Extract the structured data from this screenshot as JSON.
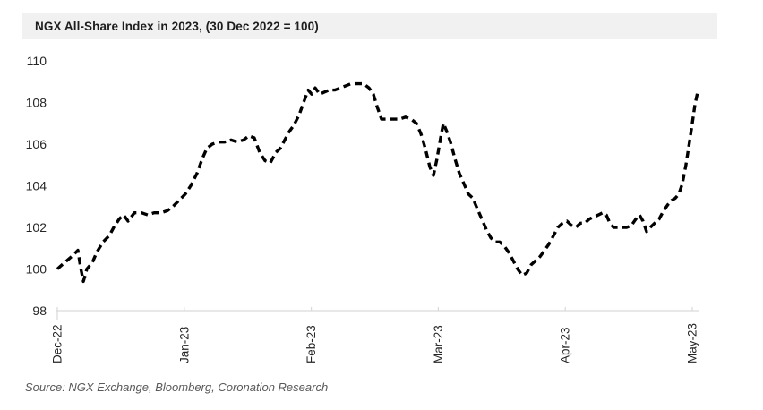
{
  "header": {
    "title": "NGX All-Share Index in 2023, (30 Dec 2022 = 100)"
  },
  "footer": {
    "source": "Source: NGX Exchange, Bloomberg, Coronation Research"
  },
  "colors": {
    "background": "#ffffff",
    "title_bar_bg": "#f1f1f1",
    "title_text": "#1d1d1f",
    "line": "#000000",
    "axis_line": "#d9d9d9",
    "axis_text": "#262626",
    "source_text": "#595959"
  },
  "chart_data": {
    "type": "line",
    "title": "NGX All-Share Index in 2023, (30 Dec 2022 = 100)",
    "xlabel": "",
    "ylabel": "",
    "x_unit": "months after 30 Dec 2022 (0 = Dec-22 tick, 5 = May-23 tick)",
    "x_tick_labels": [
      "Dec-22",
      "Jan-23",
      "Feb-23",
      "Mar-23",
      "Apr-23",
      "May-23"
    ],
    "y_ticks": [
      98,
      100,
      102,
      104,
      106,
      108,
      110
    ],
    "ylim": [
      98,
      110
    ],
    "xlim": [
      0,
      5.06
    ],
    "grid": false,
    "legend": "none",
    "line_style": "dashed",
    "series": [
      {
        "name": "NGX All-Share Index (rebased, 30 Dec 2022 = 100)",
        "points": [
          [
            0.0,
            100.0
          ],
          [
            0.056,
            100.3
          ],
          [
            0.113,
            100.6
          ],
          [
            0.162,
            100.9
          ],
          [
            0.183,
            100.1
          ],
          [
            0.205,
            99.4
          ],
          [
            0.233,
            100.0
          ],
          [
            0.275,
            100.3
          ],
          [
            0.31,
            100.8
          ],
          [
            0.36,
            101.3
          ],
          [
            0.409,
            101.6
          ],
          [
            0.444,
            102.0
          ],
          [
            0.487,
            102.4
          ],
          [
            0.522,
            102.6
          ],
          [
            0.557,
            102.3
          ],
          [
            0.607,
            102.7
          ],
          [
            0.663,
            102.7
          ],
          [
            0.712,
            102.6
          ],
          [
            0.762,
            102.7
          ],
          [
            0.818,
            102.7
          ],
          [
            0.867,
            102.8
          ],
          [
            0.91,
            103.0
          ],
          [
            0.959,
            103.3
          ],
          [
            1.008,
            103.6
          ],
          [
            1.051,
            104.0
          ],
          [
            1.1,
            104.6
          ],
          [
            1.142,
            105.3
          ],
          [
            1.178,
            105.8
          ],
          [
            1.22,
            106.0
          ],
          [
            1.269,
            106.1
          ],
          [
            1.319,
            106.1
          ],
          [
            1.368,
            106.2
          ],
          [
            1.417,
            106.1
          ],
          [
            1.467,
            106.2
          ],
          [
            1.509,
            106.4
          ],
          [
            1.551,
            106.3
          ],
          [
            1.594,
            105.6
          ],
          [
            1.636,
            105.2
          ],
          [
            1.678,
            105.1
          ],
          [
            1.721,
            105.6
          ],
          [
            1.756,
            105.8
          ],
          [
            1.791,
            106.2
          ],
          [
            1.826,
            106.6
          ],
          [
            1.862,
            106.9
          ],
          [
            1.904,
            107.4
          ],
          [
            1.939,
            108.0
          ],
          [
            1.975,
            108.6
          ],
          [
            2.003,
            108.4
          ],
          [
            2.031,
            108.7
          ],
          [
            2.066,
            108.4
          ],
          [
            2.102,
            108.5
          ],
          [
            2.144,
            108.6
          ],
          [
            2.186,
            108.6
          ],
          [
            2.229,
            108.7
          ],
          [
            2.271,
            108.8
          ],
          [
            2.313,
            108.9
          ],
          [
            2.362,
            108.9
          ],
          [
            2.412,
            108.9
          ],
          [
            2.454,
            108.7
          ],
          [
            2.489,
            108.4
          ],
          [
            2.518,
            107.8
          ],
          [
            2.553,
            107.2
          ],
          [
            2.595,
            107.2
          ],
          [
            2.645,
            107.2
          ],
          [
            2.694,
            107.2
          ],
          [
            2.743,
            107.3
          ],
          [
            2.786,
            107.2
          ],
          [
            2.828,
            107.0
          ],
          [
            2.863,
            106.5
          ],
          [
            2.898,
            105.8
          ],
          [
            2.934,
            104.9
          ],
          [
            2.962,
            104.5
          ],
          [
            2.99,
            105.3
          ],
          [
            3.018,
            106.3
          ],
          [
            3.04,
            107.0
          ],
          [
            3.068,
            106.6
          ],
          [
            3.096,
            106.1
          ],
          [
            3.131,
            105.3
          ],
          [
            3.166,
            104.6
          ],
          [
            3.202,
            104.1
          ],
          [
            3.237,
            103.6
          ],
          [
            3.272,
            103.4
          ],
          [
            3.307,
            102.9
          ],
          [
            3.343,
            102.4
          ],
          [
            3.378,
            101.9
          ],
          [
            3.413,
            101.5
          ],
          [
            3.448,
            101.3
          ],
          [
            3.484,
            101.3
          ],
          [
            3.519,
            101.1
          ],
          [
            3.554,
            100.8
          ],
          [
            3.59,
            100.4
          ],
          [
            3.625,
            100.0
          ],
          [
            3.66,
            99.7
          ],
          [
            3.695,
            99.8
          ],
          [
            3.731,
            100.2
          ],
          [
            3.766,
            100.4
          ],
          [
            3.801,
            100.6
          ],
          [
            3.837,
            100.9
          ],
          [
            3.872,
            101.2
          ],
          [
            3.907,
            101.6
          ],
          [
            3.942,
            102.0
          ],
          [
            3.978,
            102.2
          ],
          [
            4.013,
            102.3
          ],
          [
            4.048,
            102.1
          ],
          [
            4.083,
            102.0
          ],
          [
            4.119,
            102.2
          ],
          [
            4.154,
            102.2
          ],
          [
            4.189,
            102.4
          ],
          [
            4.225,
            102.5
          ],
          [
            4.26,
            102.6
          ],
          [
            4.295,
            102.7
          ],
          [
            4.323,
            102.6
          ],
          [
            4.351,
            102.2
          ],
          [
            4.38,
            102.0
          ],
          [
            4.415,
            102.0
          ],
          [
            4.45,
            102.0
          ],
          [
            4.485,
            102.0
          ],
          [
            4.521,
            102.1
          ],
          [
            4.556,
            102.4
          ],
          [
            4.584,
            102.6
          ],
          [
            4.612,
            102.3
          ],
          [
            4.64,
            101.8
          ],
          [
            4.669,
            102.0
          ],
          [
            4.704,
            102.2
          ],
          [
            4.739,
            102.4
          ],
          [
            4.774,
            102.8
          ],
          [
            4.809,
            103.1
          ],
          [
            4.838,
            103.3
          ],
          [
            4.866,
            103.4
          ],
          [
            4.894,
            103.6
          ],
          [
            4.922,
            104.1
          ],
          [
            4.95,
            105.0
          ],
          [
            4.978,
            106.1
          ],
          [
            5.0,
            107.0
          ],
          [
            5.021,
            107.9
          ],
          [
            5.042,
            108.5
          ]
        ]
      }
    ]
  }
}
